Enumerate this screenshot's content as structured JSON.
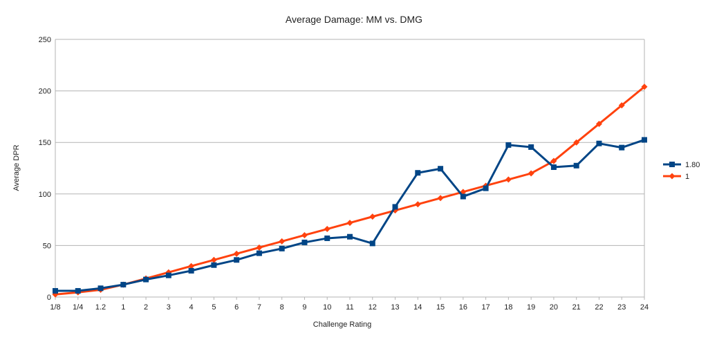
{
  "chart_data": {
    "type": "line",
    "title": "Average Damage: MM vs. DMG",
    "xlabel": "Challenge Rating",
    "ylabel": "Average DPR",
    "ylim": [
      0,
      250
    ],
    "yticks": [
      0,
      50,
      100,
      150,
      200,
      250
    ],
    "grid": true,
    "legend_position": "right",
    "categories": [
      "1/8",
      "1/4",
      "1.2",
      "1",
      "2",
      "3",
      "4",
      "5",
      "6",
      "7",
      "8",
      "9",
      "10",
      "11",
      "12",
      "13",
      "14",
      "15",
      "16",
      "17",
      "18",
      "19",
      "20",
      "21",
      "22",
      "23",
      "24"
    ],
    "series": [
      {
        "name": "1.80",
        "color": "#004586",
        "marker": "square",
        "values": [
          6,
          6,
          8.5,
          12,
          17,
          21,
          25.5,
          31,
          36,
          42.5,
          47,
          53,
          57,
          58.5,
          52,
          87.5,
          120.5,
          124.5,
          97.5,
          105.5,
          147.5,
          145.5,
          126,
          127.5,
          149,
          145,
          152.5
        ]
      },
      {
        "name": "1",
        "color": "#ff420e",
        "marker": "diamond",
        "values": [
          2.5,
          4.5,
          7,
          12,
          18,
          24,
          30,
          36,
          42,
          48,
          54,
          60,
          66,
          72,
          78,
          84,
          90,
          96,
          102,
          108,
          114,
          120,
          132,
          150,
          168,
          186,
          204
        ]
      }
    ]
  }
}
